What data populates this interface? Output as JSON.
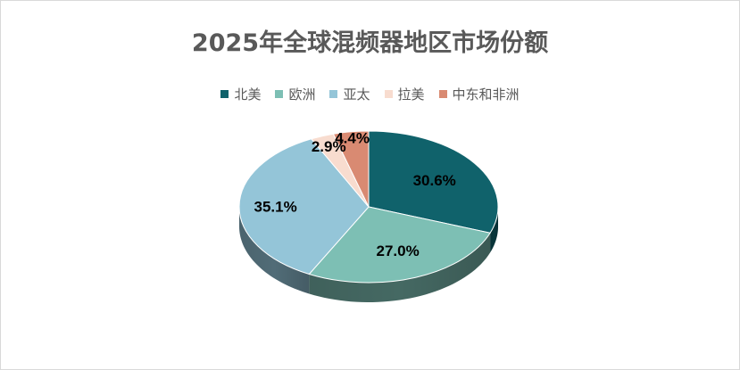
{
  "chart_data": {
    "type": "pie",
    "title": "2025年全球混频器地区市场份额",
    "categories": [
      "北美",
      "欧洲",
      "亚太",
      "拉美",
      "中东和非洲"
    ],
    "values": [
      30.6,
      27.0,
      35.1,
      2.9,
      4.4
    ],
    "data_labels": [
      "30.6%",
      "27.0%",
      "35.1%",
      "2.9%",
      "4.4%"
    ],
    "colors": [
      "#10626b",
      "#7dbfb4",
      "#94c5d8",
      "#f8dccf",
      "#d98a72"
    ],
    "legend_position": "top",
    "style": "3d"
  }
}
